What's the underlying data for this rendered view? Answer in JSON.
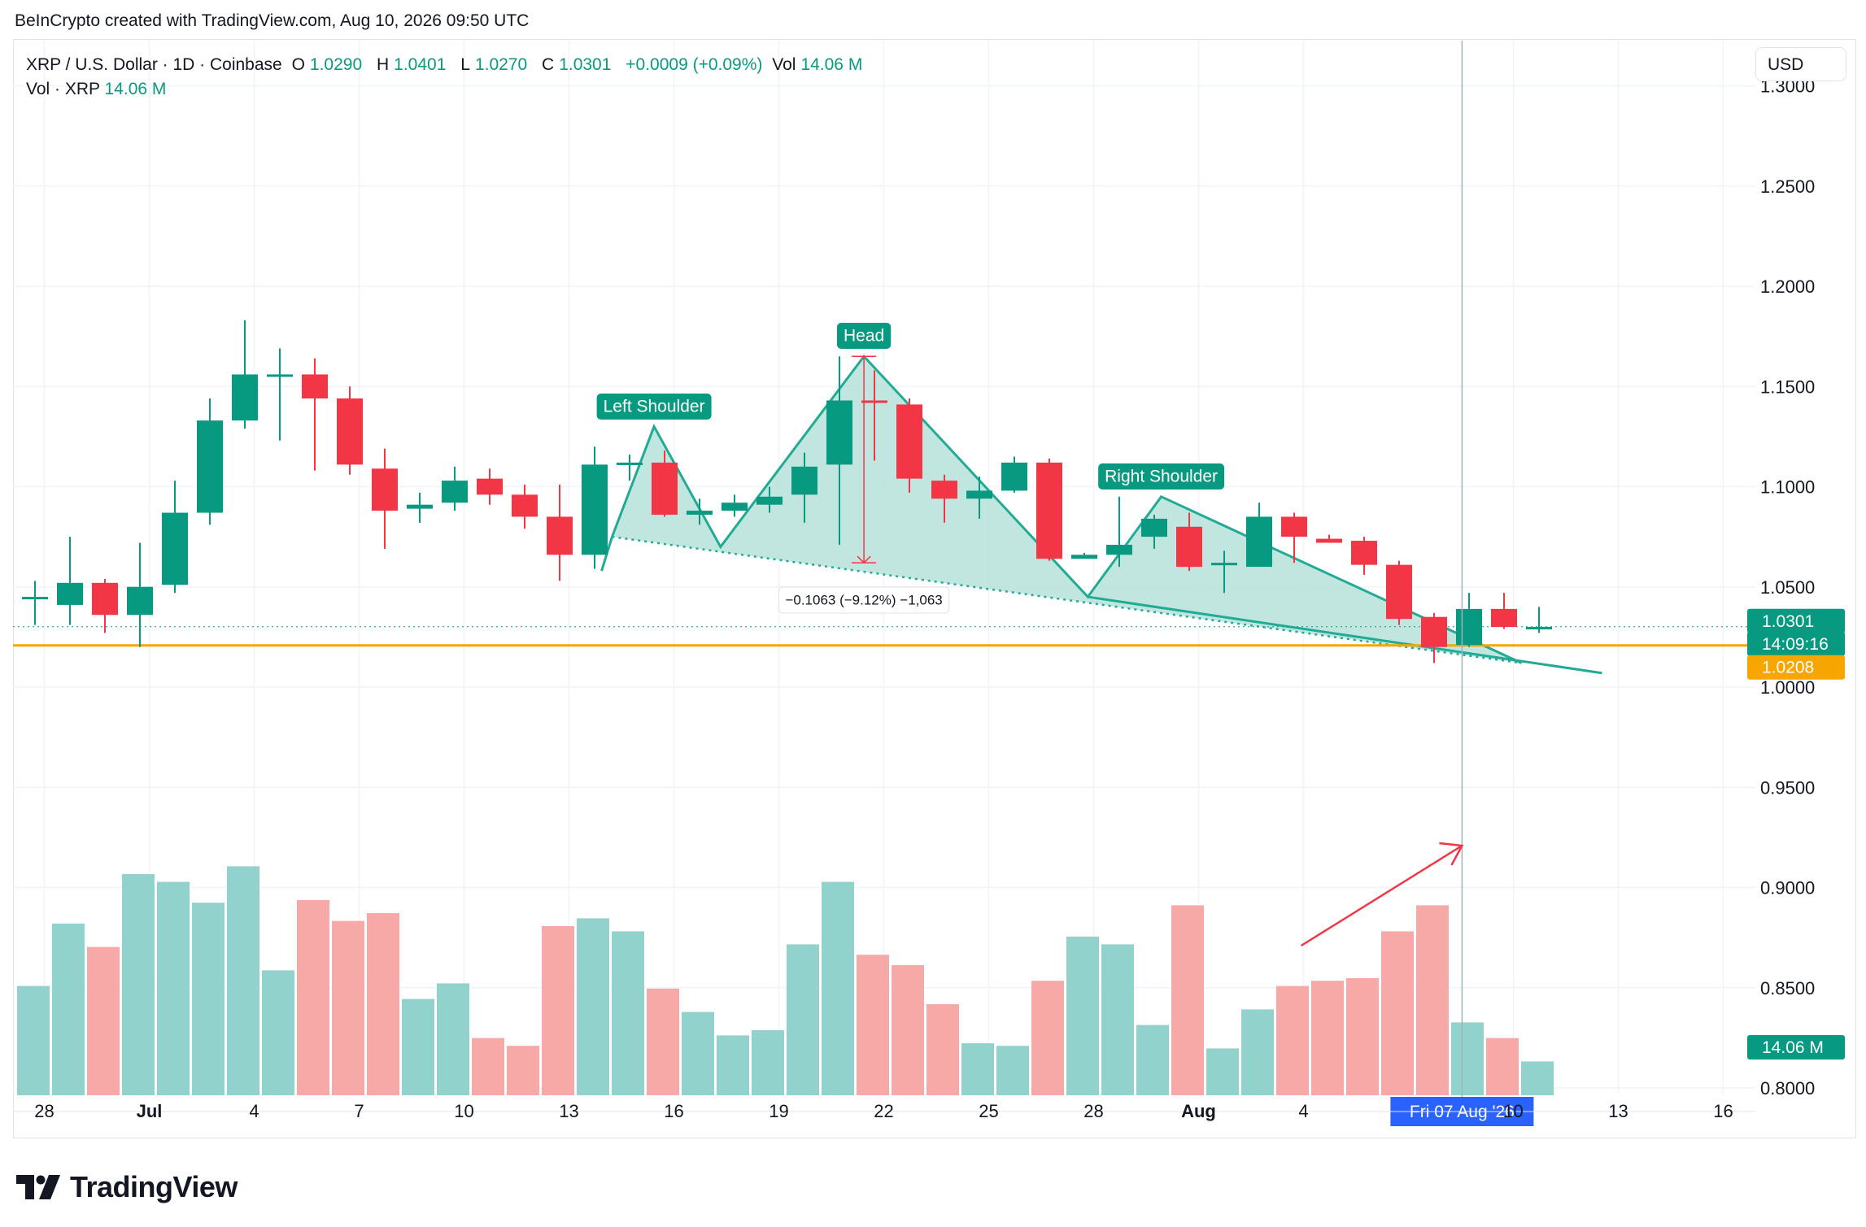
{
  "header": {
    "credit": "BeInCrypto created with TradingView.com, Aug 10, 2026 09:50 UTC"
  },
  "legend": {
    "symbol": "XRP / U.S. Dollar · 1D · Coinbase",
    "o_label": "O",
    "o_value": "1.0290",
    "h_label": "H",
    "h_value": "1.0401",
    "l_label": "L",
    "l_value": "1.0270",
    "c_label": "C",
    "c_value": "1.0301",
    "change": "+0.0009 (+0.09%)",
    "vol_label": "Vol",
    "vol_value": "14.06 M",
    "volume_row_label": "Vol · XRP",
    "volume_row_value": "14.06 M"
  },
  "currency_button": "USD",
  "branding": {
    "logo_text": "TradingView"
  },
  "colors": {
    "up": "#089981",
    "down": "#f23645",
    "up_volume": "#92d2cc",
    "down_volume": "#f7a9a7",
    "pattern_fill": "#b2e0d8",
    "support_line": "#f7a600",
    "annotation_arrow": "#f23645",
    "crosshair_date_bg": "#2962ff"
  },
  "chart_data": {
    "type": "candlestick",
    "symbol": "XRP / U.S. Dollar",
    "interval": "1D",
    "exchange": "Coinbase",
    "x_axis_labels": [
      "28",
      "Jul",
      "4",
      "7",
      "10",
      "13",
      "16",
      "19",
      "22",
      "25",
      "28",
      "Aug",
      "4",
      "10",
      "13",
      "16"
    ],
    "y_axis_labels": [
      "1.3000",
      "1.2500",
      "1.2000",
      "1.1500",
      "1.1000",
      "1.0500",
      "1.0000",
      "0.9500",
      "0.9000",
      "0.8500",
      "0.8000"
    ],
    "ylim": [
      0.79,
      1.31
    ],
    "grid": true,
    "candles": [
      {
        "date": "Jun 27",
        "o": 1.044,
        "h": 1.053,
        "l": 1.031,
        "c": 1.045
      },
      {
        "date": "Jun 28",
        "o": 1.041,
        "h": 1.075,
        "l": 1.031,
        "c": 1.052
      },
      {
        "date": "Jun 29",
        "o": 1.052,
        "h": 1.054,
        "l": 1.027,
        "c": 1.036
      },
      {
        "date": "Jun 30",
        "o": 1.036,
        "h": 1.072,
        "l": 1.02,
        "c": 1.05
      },
      {
        "date": "Jul 1",
        "o": 1.051,
        "h": 1.103,
        "l": 1.047,
        "c": 1.087
      },
      {
        "date": "Jul 2",
        "o": 1.087,
        "h": 1.144,
        "l": 1.081,
        "c": 1.133
      },
      {
        "date": "Jul 3",
        "o": 1.133,
        "h": 1.183,
        "l": 1.129,
        "c": 1.156
      },
      {
        "date": "Jul 4",
        "o": 1.156,
        "h": 1.169,
        "l": 1.123,
        "c": 1.156
      },
      {
        "date": "Jul 5",
        "o": 1.156,
        "h": 1.164,
        "l": 1.108,
        "c": 1.144
      },
      {
        "date": "Jul 6",
        "o": 1.144,
        "h": 1.15,
        "l": 1.106,
        "c": 1.111
      },
      {
        "date": "Jul 7",
        "o": 1.109,
        "h": 1.119,
        "l": 1.069,
        "c": 1.088
      },
      {
        "date": "Jul 8",
        "o": 1.089,
        "h": 1.097,
        "l": 1.082,
        "c": 1.091
      },
      {
        "date": "Jul 9",
        "o": 1.092,
        "h": 1.11,
        "l": 1.088,
        "c": 1.103
      },
      {
        "date": "Jul 10",
        "o": 1.104,
        "h": 1.109,
        "l": 1.091,
        "c": 1.096
      },
      {
        "date": "Jul 11",
        "o": 1.096,
        "h": 1.101,
        "l": 1.079,
        "c": 1.085
      },
      {
        "date": "Jul 12",
        "o": 1.085,
        "h": 1.101,
        "l": 1.053,
        "c": 1.066
      },
      {
        "date": "Jul 13",
        "o": 1.066,
        "h": 1.12,
        "l": 1.059,
        "c": 1.111
      },
      {
        "date": "Jul 14",
        "o": 1.111,
        "h": 1.116,
        "l": 1.103,
        "c": 1.112
      },
      {
        "date": "Jul 15",
        "o": 1.112,
        "h": 1.118,
        "l": 1.085,
        "c": 1.086
      },
      {
        "date": "Jul 16",
        "o": 1.086,
        "h": 1.094,
        "l": 1.081,
        "c": 1.088
      },
      {
        "date": "Jul 17",
        "o": 1.088,
        "h": 1.096,
        "l": 1.085,
        "c": 1.092
      },
      {
        "date": "Jul 18",
        "o": 1.091,
        "h": 1.1,
        "l": 1.087,
        "c": 1.095
      },
      {
        "date": "Jul 19",
        "o": 1.096,
        "h": 1.117,
        "l": 1.082,
        "c": 1.11
      },
      {
        "date": "Jul 20",
        "o": 1.111,
        "h": 1.165,
        "l": 1.071,
        "c": 1.143
      },
      {
        "date": "Jul 21",
        "o": 1.143,
        "h": 1.158,
        "l": 1.113,
        "c": 1.142
      },
      {
        "date": "Jul 22",
        "o": 1.141,
        "h": 1.144,
        "l": 1.097,
        "c": 1.104
      },
      {
        "date": "Jul 23",
        "o": 1.103,
        "h": 1.106,
        "l": 1.082,
        "c": 1.094
      },
      {
        "date": "Jul 24",
        "o": 1.094,
        "h": 1.105,
        "l": 1.084,
        "c": 1.098
      },
      {
        "date": "Jul 25",
        "o": 1.098,
        "h": 1.115,
        "l": 1.097,
        "c": 1.112
      },
      {
        "date": "Jul 26",
        "o": 1.112,
        "h": 1.114,
        "l": 1.063,
        "c": 1.064
      },
      {
        "date": "Jul 27",
        "o": 1.064,
        "h": 1.067,
        "l": 1.065,
        "c": 1.066
      },
      {
        "date": "Jul 28",
        "o": 1.066,
        "h": 1.095,
        "l": 1.06,
        "c": 1.071
      },
      {
        "date": "Jul 29",
        "o": 1.075,
        "h": 1.086,
        "l": 1.069,
        "c": 1.084
      },
      {
        "date": "Jul 30",
        "o": 1.08,
        "h": 1.087,
        "l": 1.058,
        "c": 1.06
      },
      {
        "date": "Jul 31",
        "o": 1.062,
        "h": 1.068,
        "l": 1.047,
        "c": 1.062
      },
      {
        "date": "Aug 1",
        "o": 1.06,
        "h": 1.092,
        "l": 1.06,
        "c": 1.085
      },
      {
        "date": "Aug 2",
        "o": 1.085,
        "h": 1.087,
        "l": 1.062,
        "c": 1.075
      },
      {
        "date": "Aug 3",
        "o": 1.074,
        "h": 1.076,
        "l": 1.072,
        "c": 1.072
      },
      {
        "date": "Aug 4",
        "o": 1.073,
        "h": 1.075,
        "l": 1.056,
        "c": 1.061
      },
      {
        "date": "Aug 5",
        "o": 1.061,
        "h": 1.063,
        "l": 1.031,
        "c": 1.034
      },
      {
        "date": "Aug 6",
        "o": 1.035,
        "h": 1.037,
        "l": 1.012,
        "c": 1.02
      },
      {
        "date": "Aug 7",
        "o": 1.021,
        "h": 1.047,
        "l": 1.02,
        "c": 1.039
      },
      {
        "date": "Aug 8",
        "o": 1.039,
        "h": 1.047,
        "l": 1.029,
        "c": 1.03
      },
      {
        "date": "Aug 9",
        "o": 1.029,
        "h": 1.04,
        "l": 1.027,
        "c": 1.03
      }
    ],
    "volume_bars": [
      0.42,
      0.66,
      0.57,
      0.85,
      0.82,
      0.74,
      0.88,
      0.48,
      0.75,
      0.67,
      0.7,
      0.37,
      0.43,
      0.22,
      0.19,
      0.65,
      0.68,
      0.63,
      0.41,
      0.32,
      0.23,
      0.25,
      0.58,
      0.82,
      0.54,
      0.5,
      0.35,
      0.2,
      0.19,
      0.44,
      0.61,
      0.58,
      0.27,
      0.73,
      0.18,
      0.33,
      0.42,
      0.44,
      0.45,
      0.63,
      0.73,
      0.28,
      0.22,
      0.13
    ],
    "annotations": [
      {
        "label": "Left Shoulder"
      },
      {
        "label": "Head"
      },
      {
        "label": "Right Shoulder"
      },
      {
        "label": "−0.1063 (−9.12%) −1,063"
      }
    ],
    "price_labels": {
      "last": "1.0301",
      "countdown": "14:09:16",
      "support": "1.0208",
      "support_value": 1.0208,
      "volume": "14.06 M"
    },
    "crosshair_date": "Fri 07 Aug '26"
  }
}
